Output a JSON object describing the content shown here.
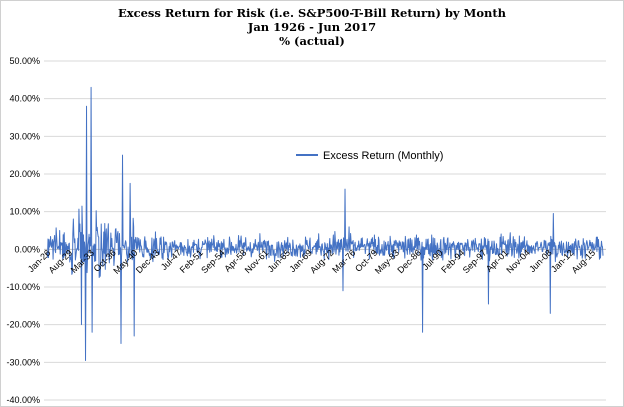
{
  "chart_data": {
    "type": "line",
    "title_lines": [
      "Excess Return for Risk (i.e. S&P500-T-Bill Return) by Month",
      "Jan 1926 - Jun 2017",
      "% (actual)"
    ],
    "xlabel": "",
    "ylabel": "",
    "ylim": [
      -40,
      50
    ],
    "y_ticks": [
      50,
      40,
      30,
      20,
      10,
      0,
      -10,
      -20,
      -30,
      -40
    ],
    "y_tick_labels": [
      "50.00%",
      "40.00%",
      "30.00%",
      "20.00%",
      "10.00%",
      "0.00%",
      "-10.00%",
      "-20.00%",
      "-30.00%",
      "-40.00%"
    ],
    "x_range": [
      "Jan-26",
      "Jun-17"
    ],
    "x_tick_labels": [
      "Jan-26",
      "Aug-29",
      "Mar-33",
      "Oct-36",
      "May-40",
      "Dec-43",
      "Jul-47",
      "Feb-51",
      "Sep-54",
      "Apr-58",
      "Nov-61",
      "Jun-65",
      "Jan-69",
      "Aug-72",
      "Mar-76",
      "Oct-79",
      "May-83",
      "Dec-86",
      "Jul-90",
      "Feb-94",
      "Sep-97",
      "Apr-01",
      "Nov-04",
      "Jun-08",
      "Jan-12",
      "Aug-15"
    ],
    "legend_position": "center-right",
    "grid": "horizontal",
    "series": [
      {
        "name": "Excess Return (Monthly)",
        "color": "#4472c4",
        "notable_points": [
          {
            "date": "Jul-32",
            "value": 38.0
          },
          {
            "date": "Apr-33",
            "value": 43.0
          },
          {
            "date": "May-32",
            "value": -29.5
          },
          {
            "date": "Jun-33",
            "value": -22.0
          },
          {
            "date": "Sep-31",
            "value": -20.0
          },
          {
            "date": "Jun-38",
            "value": 25.0
          },
          {
            "date": "Mar-38",
            "value": -25.0
          },
          {
            "date": "Sep-39",
            "value": 17.5
          },
          {
            "date": "May-40",
            "value": -23.0
          },
          {
            "date": "Sep-74",
            "value": -11.0
          },
          {
            "date": "Jan-75",
            "value": 16.0
          },
          {
            "date": "Oct-87",
            "value": -22.0
          },
          {
            "date": "Aug-98",
            "value": -14.5
          },
          {
            "date": "Oct-08",
            "value": -17.0
          },
          {
            "date": "Apr-09",
            "value": 9.5
          }
        ]
      }
    ]
  }
}
